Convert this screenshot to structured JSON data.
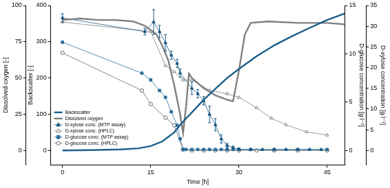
{
  "chart_data": {
    "type": "line",
    "xlabel": "Time [h]",
    "xlim": [
      -2,
      48
    ],
    "xticks": [
      0,
      15,
      30,
      45
    ],
    "ylabel": "Dissolved oxygen [-]",
    "ylim": [
      -10,
      100
    ],
    "yticks": [
      0,
      25,
      50,
      75,
      100
    ],
    "y2label": "Backscatter [-]",
    "y2lim": [
      -40,
      400
    ],
    "y2ticks": [
      0,
      100,
      200,
      300,
      400
    ],
    "y3label": "D-glucose concentration [g l⁻¹]",
    "y3lim": [
      -1.5,
      15
    ],
    "y3ticks": [
      0,
      5,
      10,
      15
    ],
    "y4label": "D-xylose concentration [g l⁻¹]",
    "y4lim": [
      -3.5,
      35
    ],
    "y4ticks": [
      0,
      5,
      10,
      15,
      20,
      25,
      30,
      35
    ],
    "grid": false,
    "legend": "lower left",
    "series": [
      {
        "name": "Backscatter",
        "color": "#1a5e8a",
        "marker": "none",
        "line_style": "solid",
        "axis": "y2",
        "x": [
          0,
          5,
          10,
          13,
          15,
          17,
          19,
          20,
          21,
          22,
          24,
          26,
          28,
          30,
          33,
          36,
          39,
          42,
          45,
          48
        ],
        "values": [
          0,
          1,
          3,
          6,
          12,
          25,
          50,
          70,
          88,
          105,
          140,
          170,
          200,
          225,
          260,
          290,
          315,
          338,
          360,
          378
        ]
      },
      {
        "name": "Dissolved oxygen",
        "color": "#7f7f7f",
        "marker": "none",
        "line_style": "solid",
        "axis": "y",
        "x": [
          0,
          3,
          6,
          9,
          12,
          14,
          16,
          17,
          18,
          19,
          20,
          20.5,
          21,
          21.5,
          22,
          24,
          26,
          28,
          29,
          30,
          31,
          32,
          35,
          40,
          45,
          48
        ],
        "values": [
          90,
          91,
          90,
          90,
          89,
          86,
          80,
          72,
          62,
          45,
          25,
          12,
          30,
          53,
          50,
          43,
          38,
          35,
          34,
          55,
          80,
          88,
          89,
          88,
          88,
          87
        ]
      },
      {
        "name": "D-xylose conc. (MTP assay)",
        "color": "#1c5a85",
        "marker": "triangle",
        "line_style": "solid",
        "axis": "y4",
        "x": [
          0,
          14,
          15.5,
          16.5,
          17.5,
          18.5,
          19.5,
          20,
          22,
          23,
          24,
          25,
          26,
          27,
          28,
          29,
          30,
          32,
          34,
          36,
          38,
          40,
          42,
          44
        ],
        "values": [
          32,
          28.7,
          31,
          28.7,
          26,
          23,
          21,
          18.7,
          15,
          13.7,
          12,
          8.7,
          6.2,
          2.8,
          1.2,
          0.7,
          0.3,
          0.2,
          0.2,
          0.2,
          0.2,
          0.2,
          0.2,
          0.2
        ],
        "errors": [
          1,
          0.8,
          3,
          1.5,
          2,
          1,
          1,
          1,
          1.5,
          1,
          1,
          2,
          1.5,
          1,
          0.5,
          0.3,
          0.3,
          0.2,
          0.2,
          0.2,
          0.2,
          0.2,
          0.2,
          0.2
        ]
      },
      {
        "name": "D-xylose conc. (HPLC)",
        "color": "#808080",
        "marker": "open_triangle",
        "line_style": "solid",
        "axis": "y4",
        "x": [
          0,
          15,
          17.5,
          19,
          20.5,
          22,
          25,
          28,
          30,
          33,
          35.5,
          38,
          41.5,
          45
        ],
        "values": [
          31,
          28.7,
          20.5,
          19,
          17,
          17,
          14.5,
          13.7,
          12.8,
          10.3,
          7.8,
          6.2,
          4.5,
          3.7
        ]
      },
      {
        "name": "D-glucose conc. (MTP assay)",
        "color": "#2a6d99",
        "marker": "square",
        "line_style": "solid",
        "axis": "y3",
        "x": [
          0,
          13.5,
          15,
          16.5,
          17.5,
          18.5,
          19.5,
          20,
          20.5,
          21,
          22,
          23,
          24,
          25,
          26,
          27,
          28,
          29,
          30,
          32,
          36,
          40,
          45
        ],
        "values": [
          11.2,
          8,
          7.3,
          6.2,
          5.5,
          4,
          2.6,
          1.2,
          0.1,
          0.1,
          0.1,
          0.1,
          0.1,
          0.1,
          0.1,
          0.1,
          0.1,
          0.1,
          0.1,
          0.1,
          0.1,
          0.1,
          0.1
        ]
      },
      {
        "name": "D-glucose conc. (HPLC)",
        "color": "#666666",
        "marker": "open_circle",
        "line_style": "solid",
        "axis": "y3",
        "x": [
          0,
          13.5,
          15,
          17.5,
          19,
          20.5,
          22,
          24,
          26,
          28,
          30,
          33,
          36,
          40,
          45
        ],
        "values": [
          10.1,
          6.2,
          4.8,
          3.4,
          2.6,
          0.1,
          0,
          0,
          0,
          0,
          0,
          0,
          0,
          0,
          0
        ]
      }
    ]
  }
}
